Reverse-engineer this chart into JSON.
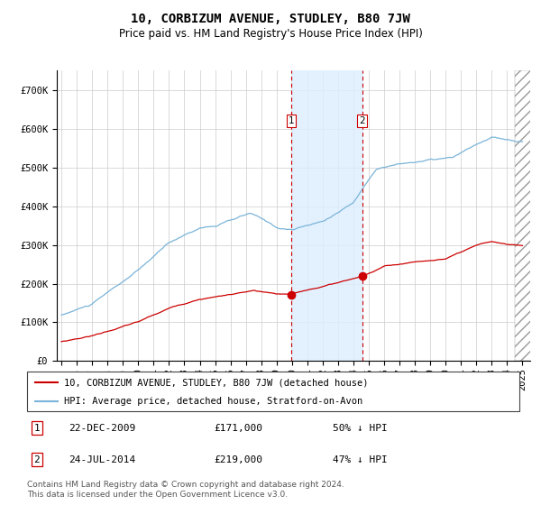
{
  "title": "10, CORBIZUM AVENUE, STUDLEY, B80 7JW",
  "subtitle": "Price paid vs. HM Land Registry's House Price Index (HPI)",
  "ylim": [
    0,
    750000
  ],
  "yticks": [
    0,
    100000,
    200000,
    300000,
    400000,
    500000,
    600000,
    700000
  ],
  "ytick_labels": [
    "£0",
    "£100K",
    "£200K",
    "£300K",
    "£400K",
    "£500K",
    "£600K",
    "£700K"
  ],
  "hpi_color": "#7ab4d8",
  "price_color": "#cc0000",
  "marker_color": "#cc0000",
  "vline_color": "#cc0000",
  "shade_color": "#ddeeff",
  "point1_date_num": 2009.97,
  "point1_price": 171000,
  "point2_date_num": 2014.56,
  "point2_price": 219000,
  "legend_house_label": "10, CORBIZUM AVENUE, STUDLEY, B80 7JW (detached house)",
  "legend_hpi_label": "HPI: Average price, detached house, Stratford-on-Avon",
  "row1_num": "1",
  "row1_date": "22-DEC-2009",
  "row1_price": "£171,000",
  "row1_hpi": "50% ↓ HPI",
  "row2_num": "2",
  "row2_date": "24-JUL-2014",
  "row2_price": "£219,000",
  "row2_hpi": "47% ↓ HPI",
  "footnote": "Contains HM Land Registry data © Crown copyright and database right 2024.\nThis data is licensed under the Open Government Licence v3.0.",
  "hatch_x_start": 2024.5,
  "title_fontsize": 10,
  "subtitle_fontsize": 8.5,
  "axis_fontsize": 7.5,
  "legend_fontsize": 7.5,
  "table_fontsize": 8,
  "footnote_fontsize": 6.5,
  "xmin": 1994.7,
  "xmax": 2025.5
}
